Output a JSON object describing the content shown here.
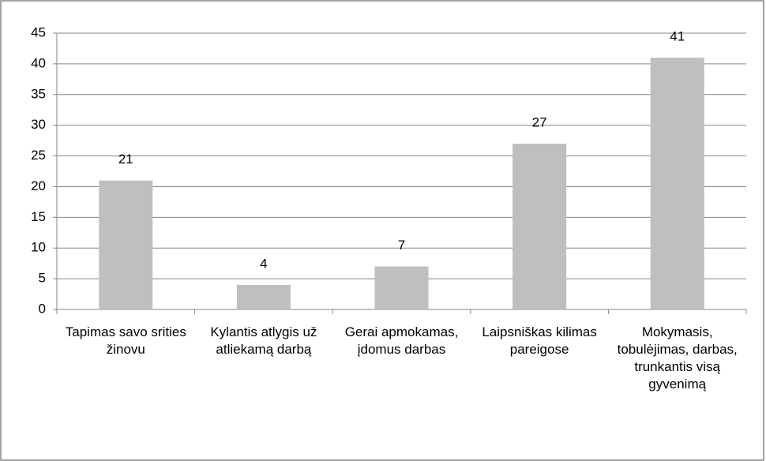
{
  "chart_data": {
    "type": "bar",
    "categories": [
      "Tapimas savo srities žinovu",
      "Kylantis atlygis už atliekamą darbą",
      "Gerai apmokamas, įdomus darbas",
      "Laipsniškas kilimas pareigose",
      "Mokymasis, tobulėjimas, darbas, trunkantis visą gyvenimą"
    ],
    "values": [
      21,
      4,
      7,
      27,
      41
    ],
    "color": "#bfbfbf",
    "ylim": [
      0,
      45
    ],
    "yticks": [
      0,
      5,
      10,
      15,
      20,
      25,
      30,
      35,
      40,
      45
    ],
    "grid": true,
    "data_labels": true
  }
}
